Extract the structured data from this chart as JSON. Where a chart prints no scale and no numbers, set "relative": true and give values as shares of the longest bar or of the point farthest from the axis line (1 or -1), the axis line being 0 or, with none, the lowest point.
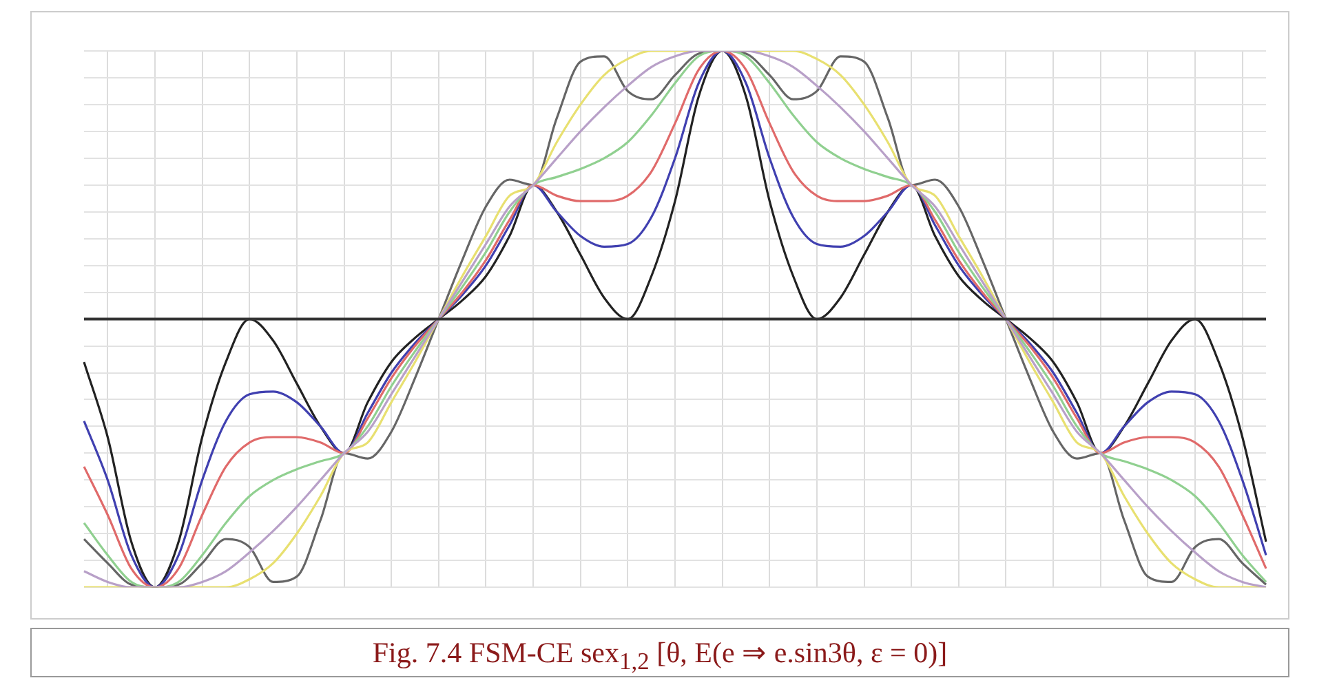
{
  "chart_data": {
    "type": "line",
    "title": "Fig. 7.4 FSM-CE sex$_{1,2}$ [θ, E(e ⇒ e.sin3θ, ε = 0)]",
    "relative": true,
    "grid": true,
    "legend": false,
    "marker": "none",
    "categories": [
      null,
      null,
      null,
      null,
      null,
      null,
      null,
      null,
      null,
      null,
      null,
      null,
      null,
      null,
      null,
      null,
      null,
      null,
      null,
      null,
      null,
      null,
      null,
      null,
      null,
      null,
      null,
      null,
      null,
      null,
      null,
      null,
      null,
      null,
      null,
      null,
      null,
      null,
      null,
      null,
      null,
      null,
      null,
      null,
      null,
      null,
      null,
      null,
      null,
      null,
      null
    ],
    "series": [
      {
        "color": "#b8a0c8",
        "values": [
          -0.94,
          -0.98,
          -1,
          -1,
          -1,
          -0.98,
          -0.94,
          -0.87,
          -0.79,
          -0.7,
          -0.6,
          -0.5,
          -0.42,
          -0.28,
          -0.14,
          0,
          0.14,
          0.28,
          0.42,
          0.5,
          0.6,
          0.7,
          0.79,
          0.87,
          0.94,
          0.98,
          1,
          1,
          1,
          0.98,
          0.94,
          0.87,
          0.79,
          0.7,
          0.6,
          0.5,
          0.42,
          0.28,
          0.14,
          0,
          -0.14,
          -0.28,
          -0.42,
          -0.5,
          -0.6,
          -0.7,
          -0.79,
          -0.87,
          -0.94,
          -0.98,
          -1
        ]
      },
      {
        "color": "#e8e070",
        "values": [
          -1,
          -1,
          -1,
          -1,
          -1,
          -1,
          -1,
          -0.97,
          -0.91,
          -0.8,
          -0.66,
          -0.5,
          -0.46,
          -0.31,
          -0.16,
          0,
          0.16,
          0.31,
          0.46,
          0.5,
          0.66,
          0.8,
          0.91,
          0.97,
          1,
          1,
          1,
          1,
          1,
          1,
          1,
          0.97,
          0.91,
          0.8,
          0.66,
          0.5,
          0.46,
          0.31,
          0.16,
          0,
          -0.16,
          -0.31,
          -0.46,
          -0.5,
          -0.66,
          -0.8,
          -0.91,
          -0.97,
          -1,
          -1,
          -1
        ]
      },
      {
        "color": "#90d090",
        "values": [
          -0.76,
          -0.88,
          -0.98,
          -1,
          -0.98,
          -0.88,
          -0.76,
          -0.66,
          -0.6,
          -0.56,
          -0.53,
          -0.5,
          -0.4,
          -0.25,
          -0.12,
          0,
          0.12,
          0.25,
          0.4,
          0.5,
          0.53,
          0.56,
          0.6,
          0.66,
          0.76,
          0.88,
          0.98,
          1,
          0.98,
          0.88,
          0.76,
          0.66,
          0.6,
          0.56,
          0.53,
          0.5,
          0.4,
          0.25,
          0.12,
          0,
          -0.12,
          -0.25,
          -0.4,
          -0.5,
          -0.53,
          -0.56,
          -0.6,
          -0.66,
          -0.76,
          -0.88,
          -0.98
        ]
      },
      {
        "color": "#e06a6a",
        "values": [
          -0.55,
          -0.73,
          -0.93,
          -1,
          -0.93,
          -0.73,
          -0.55,
          -0.46,
          -0.44,
          -0.44,
          -0.46,
          -0.5,
          -0.37,
          -0.22,
          -0.1,
          0,
          0.1,
          0.22,
          0.37,
          0.5,
          0.46,
          0.44,
          0.44,
          0.46,
          0.55,
          0.73,
          0.93,
          1,
          0.93,
          0.73,
          0.55,
          0.46,
          0.44,
          0.44,
          0.46,
          0.5,
          0.37,
          0.22,
          0.1,
          0,
          -0.1,
          -0.22,
          -0.37,
          -0.5,
          -0.46,
          -0.44,
          -0.44,
          -0.46,
          -0.55,
          -0.73,
          -0.93
        ]
      },
      {
        "color": "#4040b0",
        "values": [
          -0.38,
          -0.6,
          -0.88,
          -1,
          -0.88,
          -0.6,
          -0.38,
          -0.28,
          -0.27,
          -0.31,
          -0.4,
          -0.5,
          -0.35,
          -0.2,
          -0.09,
          0,
          0.09,
          0.2,
          0.35,
          0.5,
          0.4,
          0.31,
          0.27,
          0.28,
          0.38,
          0.6,
          0.88,
          1,
          0.88,
          0.6,
          0.38,
          0.28,
          0.27,
          0.31,
          0.4,
          0.5,
          0.35,
          0.2,
          0.09,
          0,
          -0.09,
          -0.2,
          -0.35,
          -0.5,
          -0.4,
          -0.31,
          -0.27,
          -0.28,
          -0.38,
          -0.6,
          -0.88
        ]
      },
      {
        "color": "#666666",
        "values": [
          -0.82,
          -0.91,
          -0.99,
          -1,
          -0.99,
          -0.91,
          -0.82,
          -0.85,
          -0.98,
          -0.96,
          -0.75,
          -0.5,
          -0.52,
          -0.42,
          -0.22,
          0,
          0.22,
          0.42,
          0.52,
          0.5,
          0.75,
          0.96,
          0.98,
          0.85,
          0.82,
          0.91,
          0.99,
          1,
          0.99,
          0.91,
          0.82,
          0.85,
          0.98,
          0.96,
          0.75,
          0.5,
          0.52,
          0.42,
          0.22,
          0,
          -0.22,
          -0.42,
          -0.52,
          -0.5,
          -0.75,
          -0.96,
          -0.98,
          -0.85,
          -0.82,
          -0.91,
          -0.99
        ]
      },
      {
        "color": "#222222",
        "values": [
          -0.16,
          -0.44,
          -0.83,
          -1,
          -0.83,
          -0.44,
          -0.16,
          0,
          -0.08,
          -0.24,
          -0.4,
          -0.5,
          -0.31,
          -0.16,
          -0.07,
          0,
          0.07,
          0.16,
          0.31,
          0.5,
          0.4,
          0.24,
          0.08,
          0,
          0.16,
          0.44,
          0.83,
          1,
          0.83,
          0.44,
          0.16,
          0,
          0.08,
          0.24,
          0.4,
          0.5,
          0.31,
          0.16,
          0.07,
          0,
          -0.07,
          -0.16,
          -0.31,
          -0.5,
          -0.4,
          -0.24,
          -0.08,
          0,
          -0.16,
          -0.44,
          -0.83
        ]
      }
    ]
  }
}
